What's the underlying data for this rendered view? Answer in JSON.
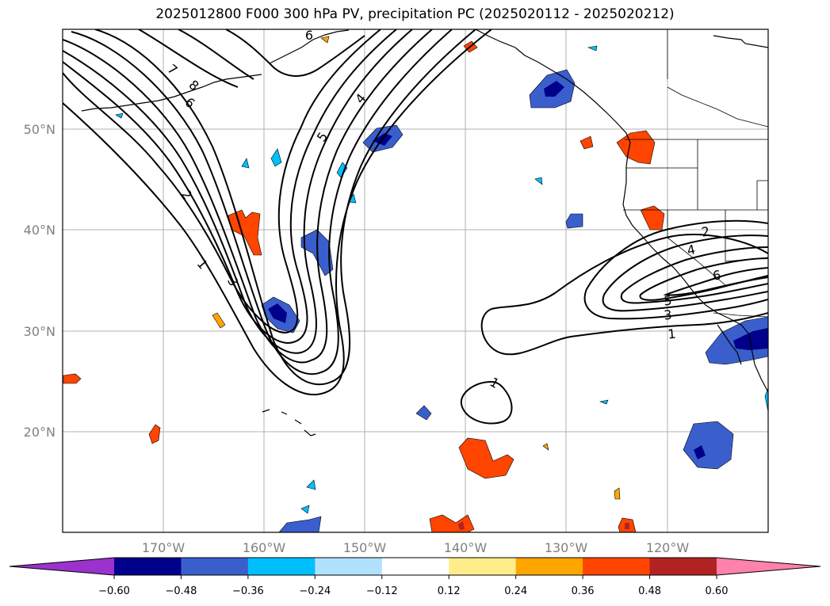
{
  "title": "2025012800 F000 300 hPa PV, precipitation PC (2025020112 - 2025020212)",
  "map": {
    "lat_labels": [
      "50°N",
      "40°N",
      "30°N",
      "20°N"
    ],
    "lon_labels": [
      "170°W",
      "160°W",
      "150°W",
      "140°W",
      "130°W",
      "120°W"
    ],
    "pv_contour_labels": [
      "8",
      "7",
      "6",
      "5",
      "4",
      "3",
      "2",
      "1",
      "1",
      "6",
      "2",
      "4",
      "6",
      "5",
      "3",
      "1"
    ]
  },
  "colorbar": {
    "colors": [
      "#9a32cd",
      "#00008b",
      "#3a5fcd",
      "#00bfff",
      "#b0e2ff",
      "#ffffff",
      "#ffec8b",
      "#ffa500",
      "#ff4500",
      "#b22222",
      "#ff82ab"
    ],
    "tick_labels": [
      "−0.60",
      "−0.48",
      "−0.36",
      "−0.24",
      "−0.12",
      "0.12",
      "0.24",
      "0.36",
      "0.48",
      "0.60"
    ]
  }
}
